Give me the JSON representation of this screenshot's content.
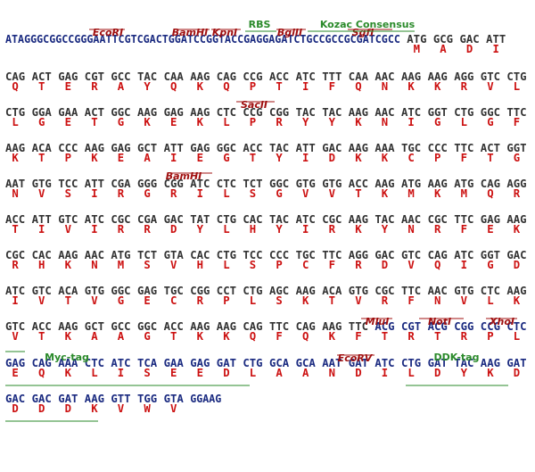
{
  "lines": [
    {
      "segments": [
        {
          "color": "#1a2a80",
          "codons": [
            "ATAGGGCGGCCGGGAATTCGTCGACTGGATCCGGTACCGAGGAGATCTGCCGCCGCGATCGCC"
          ],
          "amino_acids": [
            null
          ]
        },
        {
          "color": "#333333",
          "codons": [
            "ATG",
            "GCG",
            "GAC",
            "ATT"
          ],
          "amino_acids": [
            "M",
            "A",
            "D",
            "I"
          ]
        }
      ]
    },
    {
      "segments": [
        {
          "color": "#333333",
          "codons": [
            "CAG",
            "ACT",
            "GAG",
            "CGT",
            "GCC",
            "TAC",
            "CAA",
            "AAG",
            "CAG",
            "CCG",
            "ACC",
            "ATC",
            "TTT",
            "CAA",
            "AAC",
            "AAG",
            "AAG",
            "AGG",
            "GTC",
            "CTG"
          ],
          "amino_acids": [
            "Q",
            "T",
            "E",
            "R",
            "A",
            "Y",
            "Q",
            "K",
            "Q",
            "P",
            "T",
            "I",
            "F",
            "Q",
            "N",
            "K",
            "K",
            "R",
            "V",
            "L"
          ]
        }
      ]
    },
    {
      "segments": [
        {
          "color": "#333333",
          "codons": [
            "CTG",
            "GGA",
            "GAA",
            "ACT",
            "GGC",
            "AAG",
            "GAG",
            "AAG",
            "CTC",
            "CCG",
            "CGG",
            "TAC",
            "TAC",
            "AAG",
            "AAC",
            "ATC",
            "GGT",
            "CTG",
            "GGC",
            "TTC"
          ],
          "amino_acids": [
            "L",
            "G",
            "E",
            "T",
            "G",
            "K",
            "E",
            "K",
            "L",
            "P",
            "R",
            "Y",
            "Y",
            "K",
            "N",
            "I",
            "G",
            "L",
            "G",
            "F"
          ]
        }
      ]
    },
    {
      "segments": [
        {
          "color": "#333333",
          "codons": [
            "AAG",
            "ACA",
            "CCC",
            "AAG",
            "GAG",
            "GCT",
            "ATT",
            "GAG",
            "GGC",
            "ACC",
            "TAC",
            "ATT",
            "GAC",
            "AAG",
            "AAA",
            "TGC",
            "CCC",
            "TTC",
            "ACT",
            "GGT"
          ],
          "amino_acids": [
            "K",
            "T",
            "P",
            "K",
            "E",
            "A",
            "I",
            "E",
            "G",
            "T",
            "Y",
            "I",
            "D",
            "K",
            "K",
            "C",
            "P",
            "F",
            "T",
            "G"
          ]
        }
      ]
    },
    {
      "segments": [
        {
          "color": "#333333",
          "codons": [
            "AAT",
            "GTG",
            "TCC",
            "ATT",
            "CGA",
            "GGG",
            "CGG",
            "ATC",
            "CTC",
            "TCT",
            "GGC",
            "GTG",
            "GTG",
            "ACC",
            "AAG",
            "ATG",
            "AAG",
            "ATG",
            "CAG",
            "AGG"
          ],
          "amino_acids": [
            "N",
            "V",
            "S",
            "I",
            "R",
            "G",
            "R",
            "I",
            "L",
            "S",
            "G",
            "V",
            "V",
            "T",
            "K",
            "M",
            "K",
            "M",
            "Q",
            "R"
          ]
        }
      ]
    },
    {
      "segments": [
        {
          "color": "#333333",
          "codons": [
            "ACC",
            "ATT",
            "GTC",
            "ATC",
            "CGC",
            "CGA",
            "GAC",
            "TAT",
            "CTG",
            "CAC",
            "TAC",
            "ATC",
            "CGC",
            "AAG",
            "TAC",
            "AAC",
            "CGC",
            "TTC",
            "GAG",
            "AAG"
          ],
          "amino_acids": [
            "T",
            "I",
            "V",
            "I",
            "R",
            "R",
            "D",
            "Y",
            "L",
            "H",
            "Y",
            "I",
            "R",
            "K",
            "Y",
            "N",
            "R",
            "F",
            "E",
            "K"
          ]
        }
      ]
    },
    {
      "segments": [
        {
          "color": "#333333",
          "codons": [
            "CGC",
            "CAC",
            "AAG",
            "AAC",
            "ATG",
            "TCT",
            "GTA",
            "CAC",
            "CTG",
            "TCC",
            "CCC",
            "TGC",
            "TTC",
            "AGG",
            "GAC",
            "GTC",
            "CAG",
            "ATC",
            "GGT",
            "GAC"
          ],
          "amino_acids": [
            "R",
            "H",
            "K",
            "N",
            "M",
            "S",
            "V",
            "H",
            "L",
            "S",
            "P",
            "C",
            "F",
            "R",
            "D",
            "V",
            "Q",
            "I",
            "G",
            "D"
          ]
        }
      ]
    },
    {
      "segments": [
        {
          "color": "#333333",
          "codons": [
            "ATC",
            "GTC",
            "ACA",
            "GTG",
            "GGC",
            "GAG",
            "TGC",
            "CGG",
            "CCT",
            "CTG",
            "AGC",
            "AAG",
            "ACA",
            "GTG",
            "CGC",
            "TTC",
            "AAC",
            "GTG",
            "CTC",
            "AAG"
          ],
          "amino_acids": [
            "I",
            "V",
            "T",
            "V",
            "G",
            "E",
            "C",
            "R",
            "P",
            "L",
            "S",
            "K",
            "T",
            "V",
            "R",
            "F",
            "N",
            "V",
            "L",
            "K"
          ]
        }
      ]
    },
    {
      "segments": [
        {
          "color": "#333333",
          "codons": [
            "GTC",
            "ACC",
            "AAG",
            "GCT",
            "GCC",
            "GGC",
            "ACC",
            "AAG",
            "AAG",
            "CAG",
            "TTC",
            "CAG",
            "AAG",
            "TTC"
          ],
          "amino_acids": [
            "V",
            "T",
            "K",
            "A",
            "A",
            "G",
            "T",
            "K",
            "K",
            "Q",
            "F",
            "Q",
            "K",
            "F"
          ]
        },
        {
          "color": "#1a2a80",
          "codons": [
            "ACG",
            "CGT",
            "ACG",
            "CGG",
            "CCG",
            "CTC"
          ],
          "amino_acids": [
            "T",
            "R",
            "T",
            "R",
            "P",
            "L"
          ]
        }
      ]
    },
    {
      "segments": [
        {
          "color": "#1a2a80",
          "codons": [
            "GAG",
            "CAG",
            "AAA",
            "CTC",
            "ATC",
            "TCA",
            "GAA",
            "GAG",
            "GAT",
            "CTG",
            "GCA",
            "GCA",
            "AAT",
            "GAT",
            "ATC",
            "CTG",
            "GAT",
            "TAC",
            "AAG",
            "GAT"
          ],
          "amino_acids": [
            "E",
            "Q",
            "K",
            "L",
            "I",
            "S",
            "E",
            "E",
            "D",
            "L",
            "A",
            "A",
            "N",
            "D",
            "I",
            "L",
            "D",
            "Y",
            "K",
            "D"
          ]
        }
      ]
    },
    {
      "segments": [
        {
          "color": "#1a2a80",
          "codons": [
            "GAC",
            "GAC",
            "GAT",
            "AAG",
            "GTT",
            "TGG",
            "GTA",
            "GGAAG"
          ],
          "amino_acids": [
            "D",
            "D",
            "D",
            "K",
            "V",
            "W",
            "V",
            null
          ]
        }
      ]
    }
  ],
  "amino_acid_color": "#cc1111",
  "annotations": [
    {
      "label": "EcoRI",
      "color": "#a01010"
    },
    {
      "label": "BamHI",
      "color": "#a01010"
    },
    {
      "label": "KpnI",
      "color": "#a01010"
    },
    {
      "label": "BglII",
      "color": "#a01010"
    },
    {
      "label": "SgfI",
      "color": "#a01010"
    },
    {
      "label": "RBS",
      "color": "#2a8a2a"
    },
    {
      "label": "Kozac Consensus",
      "color": "#2a8a2a"
    },
    {
      "label": "SacII",
      "color": "#a01010"
    },
    {
      "label": "BamHI",
      "color": "#a01010"
    },
    {
      "label": "MluI",
      "color": "#a01010"
    },
    {
      "label": "NotI",
      "color": "#a01010"
    },
    {
      "label": "XhoI",
      "color": "#a01010"
    },
    {
      "label": "Myc-tag",
      "color": "#2a8a2a"
    },
    {
      "label": "EcoRV",
      "color": "#a01010"
    },
    {
      "label": "DDK-tag",
      "color": "#2a8a2a"
    }
  ]
}
